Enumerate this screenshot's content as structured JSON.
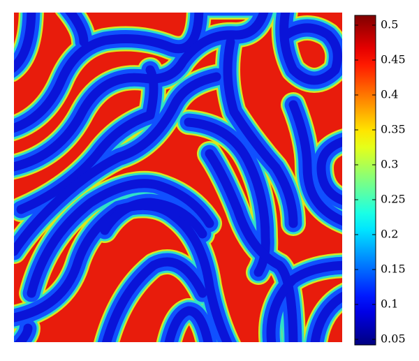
{
  "chart_data": {
    "type": "heatmap",
    "colormap": "jet",
    "clim": [
      0.042,
      0.514
    ],
    "colorbar_ticks": [
      0.05,
      0.1,
      0.15,
      0.2,
      0.25,
      0.3,
      0.35,
      0.4,
      0.45,
      0.5
    ]
  }
}
